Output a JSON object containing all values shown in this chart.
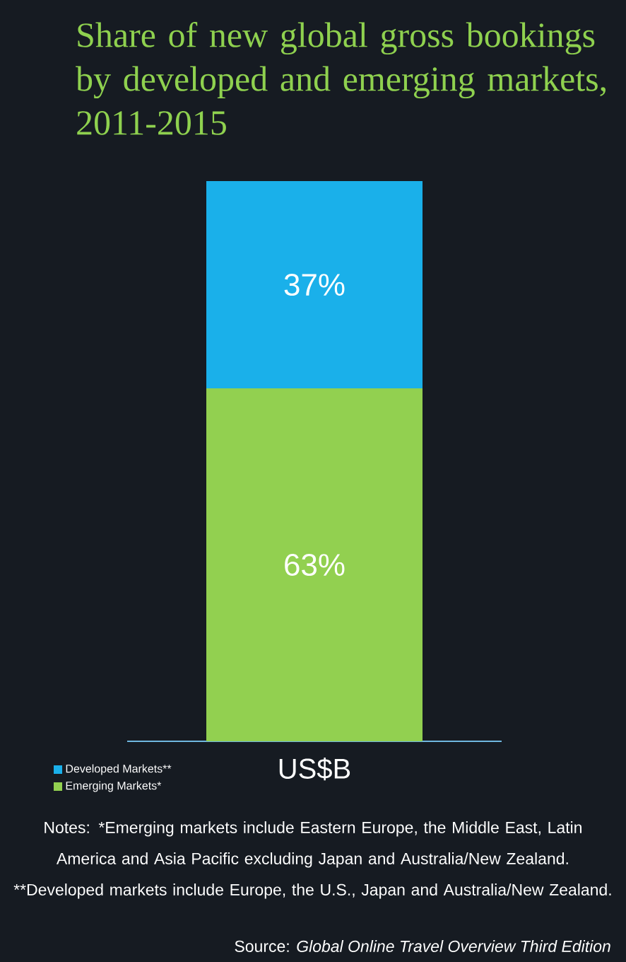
{
  "chart_data": {
    "type": "bar",
    "title": "Share of new global gross bookings by developed and emerging markets, 2011-2015",
    "xlabel": "US$B",
    "categories": [
      null
    ],
    "stacked": true,
    "legend": "bottom left",
    "series": [
      {
        "name": "Emerging Markets*",
        "color": "#92d050",
        "values": [
          63
        ],
        "value_labels": [
          "63%"
        ]
      },
      {
        "name": "Developed Markets**",
        "color": "#1ab0ea",
        "values": [
          37
        ],
        "value_labels": [
          "37%"
        ]
      }
    ],
    "annotations": [
      "Notes: *Emerging markets include Eastern Europe, the Middle East, Latin America and Asia Pacific excluding Japan and Australia/New Zealand. **Developed markets include Europe, the U.S., Japan and Australia/New Zealand.",
      "Source: *Global Online Travel Overview Third Edition*"
    ]
  }
}
